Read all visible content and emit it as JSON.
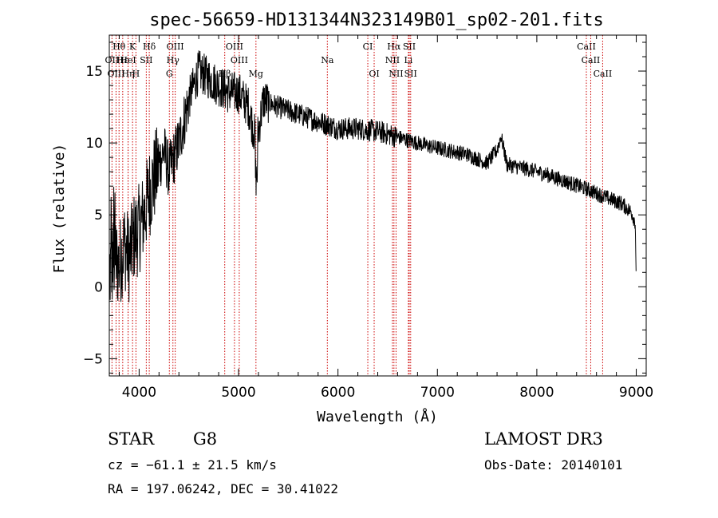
{
  "chart_data": {
    "type": "line",
    "title": "spec-56659-HD131344N323149B01_sp02-201.fits",
    "xlabel": "Wavelength (Å)",
    "ylabel": "Flux (relative)",
    "xlim": [
      3700,
      9100
    ],
    "ylim": [
      -6.2,
      17.5
    ],
    "x_ticks": [
      4000,
      5000,
      6000,
      7000,
      8000,
      9000
    ],
    "y_ticks": [
      -5,
      0,
      5,
      10,
      15
    ],
    "x_tick_labels": [
      "4000",
      "5000",
      "6000",
      "7000",
      "8000",
      "9000"
    ],
    "y_tick_labels": [
      "−5",
      "0",
      "5",
      "10",
      "15"
    ],
    "line_color": "#000000",
    "marker_color": "#cc0000",
    "spectrum_trend": {
      "x": [
        3700,
        3750,
        3800,
        3850,
        3900,
        3950,
        4000,
        4050,
        4100,
        4150,
        4200,
        4250,
        4300,
        4350,
        4400,
        4500,
        4600,
        4700,
        4800,
        4900,
        5000,
        5100,
        5180,
        5250,
        5400,
        5600,
        5800,
        6000,
        6200,
        6400,
        6560,
        6700,
        6900,
        7100,
        7300,
        7500,
        7600,
        7640,
        7700,
        7900,
        8100,
        8300,
        8500,
        8700,
        8850,
        8950,
        8990,
        9000
      ],
      "y": [
        1.0,
        2.0,
        1.5,
        3.0,
        2.0,
        3.5,
        4.0,
        5.0,
        6.5,
        7.5,
        8.5,
        9.5,
        8.0,
        9.0,
        10.0,
        13.0,
        15.0,
        14.5,
        14.0,
        13.5,
        13.5,
        12.5,
        10.0,
        13.0,
        12.5,
        12.0,
        11.5,
        11.0,
        11.0,
        10.8,
        10.5,
        10.2,
        9.8,
        9.5,
        9.2,
        8.6,
        9.5,
        10.5,
        8.5,
        8.2,
        7.8,
        7.3,
        6.8,
        6.2,
        5.8,
        5.2,
        4.5,
        0.5
      ]
    },
    "line_markers": [
      {
        "label": "Hθ",
        "wavelength": 3798,
        "row": 1
      },
      {
        "label": "K",
        "wavelength": 3934,
        "row": 1
      },
      {
        "label": "Hδ",
        "wavelength": 4102,
        "row": 1
      },
      {
        "label": "OIII",
        "wavelength": 4363,
        "row": 1
      },
      {
        "label": "OIII",
        "wavelength": 4959,
        "row": 1
      },
      {
        "label": "CI",
        "wavelength": 6300,
        "row": 1
      },
      {
        "label": "Hα",
        "wavelength": 6563,
        "row": 1
      },
      {
        "label": "SII",
        "wavelength": 6717,
        "row": 1
      },
      {
        "label": "CaII",
        "wavelength": 8498,
        "row": 1
      },
      {
        "label": "OII",
        "wavelength": 3727,
        "row": 2
      },
      {
        "label": "Hε",
        "wavelength": 3835,
        "row": 2
      },
      {
        "label": "HeI",
        "wavelength": 3889,
        "row": 2
      },
      {
        "label": "SII",
        "wavelength": 4072,
        "row": 2
      },
      {
        "label": "Hγ",
        "wavelength": 4340,
        "row": 2
      },
      {
        "label": "OIII",
        "wavelength": 5007,
        "row": 2
      },
      {
        "label": "Na",
        "wavelength": 5893,
        "row": 2
      },
      {
        "label": "NII",
        "wavelength": 6548,
        "row": 2
      },
      {
        "label": "Li",
        "wavelength": 6708,
        "row": 2
      },
      {
        "label": "CaII",
        "wavelength": 8542,
        "row": 2
      },
      {
        "label": "OIII",
        "wavelength": 3768,
        "row": 3
      },
      {
        "label": "Hη",
        "wavelength": 3889,
        "row": 3
      },
      {
        "label": "H",
        "wavelength": 3968,
        "row": 3
      },
      {
        "label": "G",
        "wavelength": 4304,
        "row": 3
      },
      {
        "label": "Hβ",
        "wavelength": 4861,
        "row": 3
      },
      {
        "label": "Mg",
        "wavelength": 5175,
        "row": 3
      },
      {
        "label": "OI",
        "wavelength": 6364,
        "row": 3
      },
      {
        "label": "NII",
        "wavelength": 6584,
        "row": 3
      },
      {
        "label": "SII",
        "wavelength": 6731,
        "row": 3
      },
      {
        "label": "CaII",
        "wavelength": 8662,
        "row": 3
      }
    ]
  },
  "info": {
    "object_class": "STAR",
    "subclass": "G8",
    "survey": "LAMOST DR3",
    "cz": "cz = −61.1 ± 21.5 km/s",
    "obs_date": "Obs-Date: 20140101",
    "coords": "RA = 197.06242, DEC =  30.41022"
  }
}
